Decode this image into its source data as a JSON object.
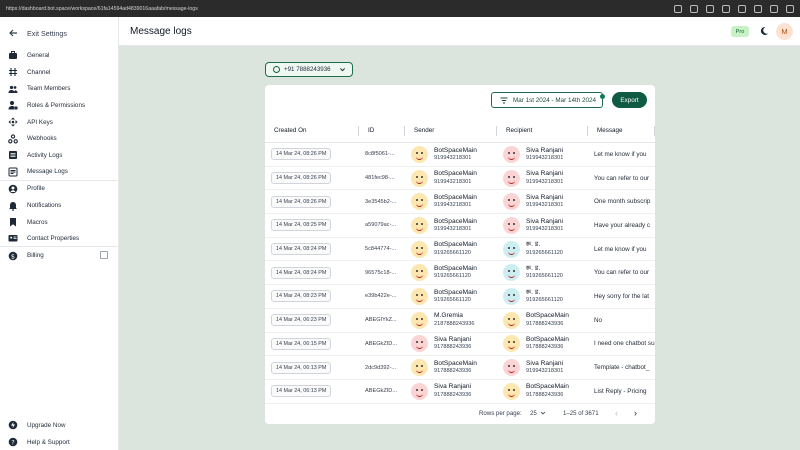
{
  "browser": {
    "url": "https://dashboard.bot.space/workspace/61fa14594ad4839016aaafab/message-logs"
  },
  "sidebar": {
    "exit_label": "Exit Settings",
    "items": [
      {
        "label": "General",
        "icon": "briefcase-icon"
      },
      {
        "label": "Channel",
        "icon": "hash-icon"
      },
      {
        "label": "Team Members",
        "icon": "people-icon"
      },
      {
        "label": "Roles & Permissions",
        "icon": "person-lock-icon"
      },
      {
        "label": "API Keys",
        "icon": "move-arrows-icon"
      },
      {
        "label": "Webhooks",
        "icon": "webhook-icon"
      },
      {
        "label": "Activity Logs",
        "icon": "list-icon"
      },
      {
        "label": "Message Logs",
        "icon": "message-list-icon"
      },
      {
        "label": "Profile",
        "icon": "user-circle-icon"
      },
      {
        "label": "Notifications",
        "icon": "bell-icon"
      },
      {
        "label": "Macros",
        "icon": "bookmark-icon"
      },
      {
        "label": "Contact Properties",
        "icon": "id-card-icon"
      },
      {
        "label": "Billing",
        "icon": "dollar-icon"
      }
    ],
    "bottom": [
      {
        "label": "Upgrade Now",
        "icon": "bolt-icon"
      },
      {
        "label": "Help & Support",
        "icon": "help-icon"
      }
    ]
  },
  "header": {
    "title": "Message logs",
    "badge": "Pro",
    "avatar_letter": "M"
  },
  "filters": {
    "phone": "+91 7888243936",
    "date_range": "Mar 1st 2024 - Mar 14th 2024",
    "export_label": "Export"
  },
  "table": {
    "columns": [
      "Created On",
      "ID",
      "Sender",
      "Recipient",
      "Message"
    ],
    "rows": [
      {
        "created": "14 Mar 24, 08:26 PM",
        "id": "8c8f5061-...",
        "sender_name": "BotSpaceMain",
        "sender_phone": "919943218301",
        "recipient_name": "Siva Ranjani",
        "recipient_phone": "919943218301",
        "message": "Let me know if you"
      },
      {
        "created": "14 Mar 24, 08:26 PM",
        "id": "481fec98-...",
        "sender_name": "BotSpaceMain",
        "sender_phone": "919943218301",
        "recipient_name": "Siva Ranjani",
        "recipient_phone": "919943218301",
        "message": "You can refer to our"
      },
      {
        "created": "14 Mar 24, 08:26 PM",
        "id": "3e3545b2-...",
        "sender_name": "BotSpaceMain",
        "sender_phone": "919943218301",
        "recipient_name": "Siva Ranjani",
        "recipient_phone": "919943218301",
        "message": "One month subscrip"
      },
      {
        "created": "14 Mar 24, 08:25 PM",
        "id": "a59079ac-...",
        "sender_name": "BotSpaceMain",
        "sender_phone": "919943218301",
        "recipient_name": "Siva Ranjani",
        "recipient_phone": "919943218301",
        "message": "Have your already c"
      },
      {
        "created": "14 Mar 24, 08:24 PM",
        "id": "5c844774-...",
        "sender_name": "BotSpaceMain",
        "sender_phone": "919265661120",
        "recipient_name": "रू. ड.",
        "recipient_phone": "919265661120",
        "message": "Let me know if you"
      },
      {
        "created": "14 Mar 24, 08:24 PM",
        "id": "96575c18-...",
        "sender_name": "BotSpaceMain",
        "sender_phone": "919265661120",
        "recipient_name": "रू. ड.",
        "recipient_phone": "919265661120",
        "message": "You can refer to our"
      },
      {
        "created": "14 Mar 24, 08:23 PM",
        "id": "e39b422e-...",
        "sender_name": "BotSpaceMain",
        "sender_phone": "919265661120",
        "recipient_name": "रू. ड.",
        "recipient_phone": "919265661120",
        "message": "Hey sorry for the lat"
      },
      {
        "created": "14 Mar 24, 06:23 PM",
        "id": "ABEGIYkZ...",
        "sender_name": "M.Gremia",
        "sender_phone": "2187888243936",
        "recipient_name": "BotSpaceMain",
        "recipient_phone": "917888243936",
        "message": "No"
      },
      {
        "created": "14 Mar 24, 06:15 PM",
        "id": "ABEGkZID...",
        "sender_name": "Siva Ranjani",
        "sender_phone": "917888243936",
        "recipient_name": "BotSpaceMain",
        "recipient_phone": "917888243936",
        "message": "I need one chatbot su"
      },
      {
        "created": "14 Mar 24, 06:13 PM",
        "id": "2dc9d392-...",
        "sender_name": "BotSpaceMain",
        "sender_phone": "917888243936",
        "recipient_name": "Siva Ranjani",
        "recipient_phone": "919943218301",
        "message": "Template - chatbot_"
      },
      {
        "created": "14 Mar 24, 06:13 PM",
        "id": "ABEGkZID...",
        "sender_name": "Siva Ranjani",
        "sender_phone": "917888243936",
        "recipient_name": "BotSpaceMain",
        "recipient_phone": "917888243936",
        "message": "List Reply - Pricing"
      }
    ]
  },
  "pagination": {
    "rows_label": "Rows per page:",
    "rows_value": "25",
    "range": "1–25 of 3671"
  },
  "colors": {
    "accent": "#0e5a42",
    "main_bg": "#dbe5dd",
    "badge_bg": "#c8f1c5"
  }
}
